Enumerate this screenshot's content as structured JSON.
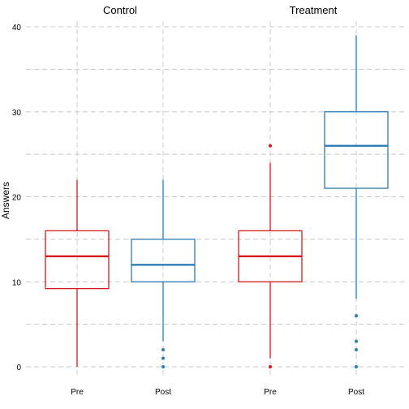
{
  "chart_data": {
    "type": "boxplot",
    "ylabel": "Answers",
    "ylim": [
      -2,
      42
    ],
    "y_ticks": [
      0,
      10,
      20,
      30,
      40
    ],
    "grid": true,
    "grid_style": "dashed",
    "colors": {
      "Pre": "#d7191c",
      "Post": "#2c7bb6"
    },
    "panels": [
      {
        "title": "Control",
        "categories": [
          "Pre",
          "Post"
        ],
        "boxes": [
          {
            "label": "Pre",
            "min": 0,
            "q1": 9.2,
            "median": 13,
            "q3": 16,
            "max": 22,
            "outliers": []
          },
          {
            "label": "Post",
            "min": 3,
            "q1": 10,
            "median": 12,
            "q3": 15,
            "max": 22,
            "outliers": [
              0,
              1,
              2
            ]
          }
        ]
      },
      {
        "title": "Treatment",
        "categories": [
          "Pre",
          "Post"
        ],
        "boxes": [
          {
            "label": "Pre",
            "min": 1,
            "q1": 10,
            "median": 13,
            "q3": 16,
            "max": 24,
            "outliers": [
              0,
              26
            ]
          },
          {
            "label": "Post",
            "min": 8,
            "q1": 21,
            "median": 26,
            "q3": 30,
            "max": 39,
            "outliers": [
              0,
              2,
              3,
              6
            ]
          }
        ]
      }
    ]
  }
}
